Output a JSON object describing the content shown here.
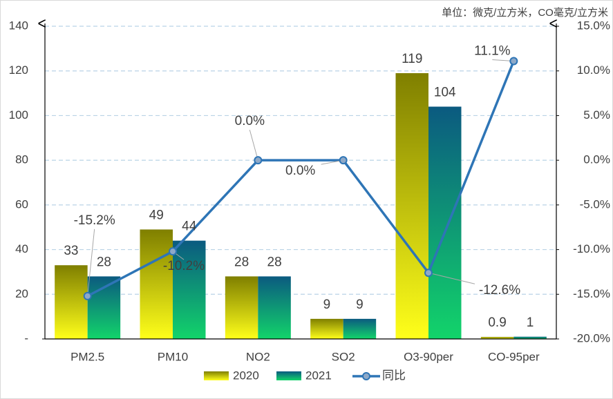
{
  "chart_data": {
    "type": "bar-line",
    "unit_note": "单位：微克/立方米，CO毫克/立方米",
    "categories": [
      "PM2.5",
      "PM10",
      "NO2",
      "SO2",
      "O3-90per",
      "CO-95per"
    ],
    "series": [
      {
        "name": "2020",
        "type": "bar",
        "color": [
          "#7f7f00",
          "#ffff1a"
        ],
        "values": [
          33,
          49,
          28,
          9,
          119,
          0.9
        ]
      },
      {
        "name": "2021",
        "type": "bar",
        "color": [
          "#0b5a80",
          "#12d46a"
        ],
        "values": [
          28,
          44,
          28,
          9,
          104,
          1
        ]
      },
      {
        "name": "同比",
        "type": "line",
        "axis": "y2",
        "color": "#2e75b6",
        "values": [
          -15.2,
          -10.2,
          0.0,
          0.0,
          -12.6,
          11.1
        ],
        "value_labels": [
          "-15.2%",
          "-10.2%",
          "0.0%",
          "0.0%",
          "-12.6%",
          "11.1%"
        ]
      }
    ],
    "ylim": [
      0,
      140
    ],
    "yticks": [
      {
        "value": 0,
        "label": "-"
      },
      20,
      40,
      60,
      80,
      100,
      120,
      140
    ],
    "y2lim": [
      -20,
      15
    ],
    "y2ticks": [
      {
        "value": -20,
        "label": "-20.0%"
      },
      {
        "value": -15,
        "label": "-15.0%"
      },
      {
        "value": -10,
        "label": "-10.0%"
      },
      {
        "value": -5,
        "label": "-5.0%"
      },
      {
        "value": 0,
        "label": "0.0%"
      },
      {
        "value": 5,
        "label": "5.0%"
      },
      {
        "value": 10,
        "label": "10.0%"
      },
      {
        "value": 15,
        "label": "15.0%"
      }
    ],
    "grid": true
  }
}
